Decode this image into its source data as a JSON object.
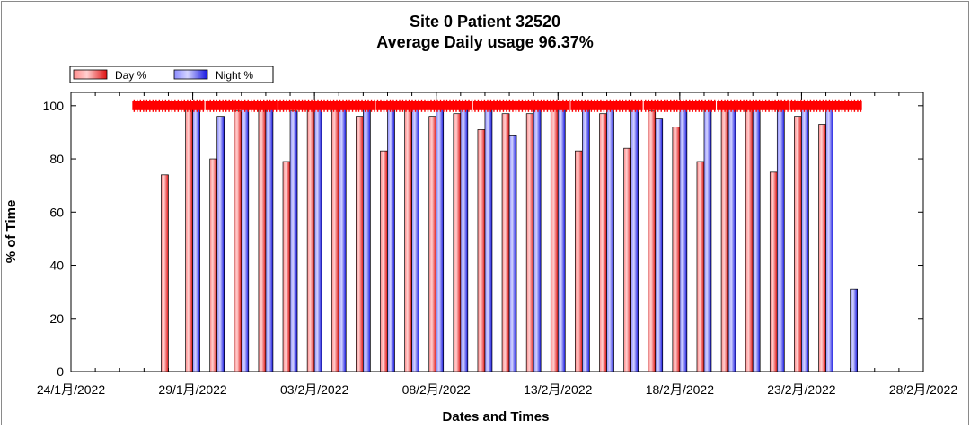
{
  "chart_data": {
    "type": "bar",
    "title": "Site 0 Patient 32520",
    "subtitle": "Average Daily usage 96.37%",
    "xlabel": "Dates and Times",
    "ylabel": "% of Time",
    "ylim": [
      0,
      105
    ],
    "yticks": [
      "0",
      "20",
      "40",
      "60",
      "80",
      "100"
    ],
    "xlim": [
      "2022-01-24",
      "2022-02-28"
    ],
    "xticks": [
      "24/1月/2022",
      "29/1月/2022",
      "03/2月/2022",
      "08/2月/2022",
      "13/2月/2022",
      "18/2月/2022",
      "23/2月/2022",
      "28/2月/2022"
    ],
    "legend": [
      "Day %",
      "Night %"
    ],
    "legend_position": "top-left",
    "colors": {
      "day": "#e01010",
      "night": "#1414e0",
      "marker": "#ff0000"
    },
    "categories": [
      "2022-01-27",
      "2022-01-28",
      "2022-01-29",
      "2022-01-30",
      "2022-01-31",
      "2022-02-01",
      "2022-02-02",
      "2022-02-03",
      "2022-02-04",
      "2022-02-05",
      "2022-02-06",
      "2022-02-07",
      "2022-02-08",
      "2022-02-09",
      "2022-02-10",
      "2022-02-11",
      "2022-02-12",
      "2022-02-13",
      "2022-02-14",
      "2022-02-15",
      "2022-02-16",
      "2022-02-17",
      "2022-02-18",
      "2022-02-19",
      "2022-02-20",
      "2022-02-21",
      "2022-02-22",
      "2022-02-23",
      "2022-02-24",
      "2022-02-25"
    ],
    "series": [
      {
        "name": "Day %",
        "values": [
          null,
          74,
          100,
          80,
          98,
          100,
          79,
          100,
          100,
          96,
          83,
          100,
          96,
          97,
          91,
          97,
          97,
          100,
          83,
          97,
          84,
          98,
          92,
          79,
          100,
          100,
          75,
          96,
          93,
          null
        ]
      },
      {
        "name": "Night %",
        "values": [
          null,
          null,
          100,
          96,
          99,
          100,
          98,
          100,
          100,
          100,
          100,
          100,
          100,
          100,
          100,
          89,
          100,
          100,
          100,
          99,
          100,
          95,
          100,
          100,
          100,
          100,
          100,
          100,
          100,
          31
        ]
      }
    ],
    "marker_segments": [
      [
        "2022-01-27",
        "2022-01-29"
      ],
      [
        "2022-01-30",
        "2022-02-01"
      ],
      [
        "2022-02-02",
        "2022-02-05"
      ],
      [
        "2022-02-06",
        "2022-02-09"
      ],
      [
        "2022-02-10",
        "2022-02-13"
      ],
      [
        "2022-02-14",
        "2022-02-16"
      ],
      [
        "2022-02-17",
        "2022-02-19"
      ],
      [
        "2022-02-20",
        "2022-02-22"
      ],
      [
        "2022-02-23",
        "2022-02-25"
      ]
    ],
    "marker_value": 100,
    "grid": false
  }
}
